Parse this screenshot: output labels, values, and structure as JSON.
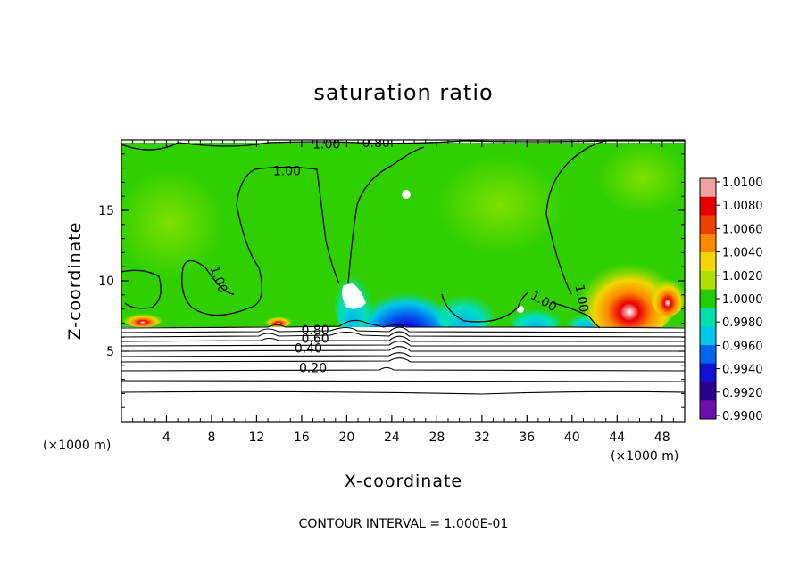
{
  "chart_data": {
    "type": "heatmap",
    "title": "saturation ratio",
    "xlabel": "X-coordinate",
    "ylabel": "Z-coordinate",
    "x_unit": "(×1000 m)",
    "y_unit": "(×1000 m)",
    "xlim": [
      0,
      50
    ],
    "ylim": [
      0,
      20
    ],
    "x_ticks": [
      4,
      8,
      12,
      16,
      20,
      24,
      28,
      32,
      36,
      40,
      44,
      48
    ],
    "y_ticks": [
      5,
      10,
      15
    ],
    "note": "CONTOUR INTERVAL = 1.000E-01",
    "colorbar": {
      "min": 0.99,
      "max": 1.01,
      "labels": [
        "1.0100",
        "1.0080",
        "1.0060",
        "1.0040",
        "1.0020",
        "1.0000",
        "0.9980",
        "0.9960",
        "0.9940",
        "0.9920",
        "0.9900"
      ],
      "colors": [
        "#f2a0a0",
        "#e80000",
        "#f04000",
        "#ff8800",
        "#f0d800",
        "#b0e000",
        "#22cc00",
        "#00e0a8",
        "#00c8e8",
        "#0066f0",
        "#1010d8",
        "#2a0090",
        "#6a10b0"
      ]
    },
    "contour_labels": [
      {
        "text": "1.00",
        "x": 14.7,
        "z": 17.5
      },
      {
        "text": "1.00",
        "x": 8.3,
        "z": 10.0,
        "rotate": 70
      },
      {
        "text": "1.00",
        "x": 37.3,
        "z": 8.3,
        "rotate": 30
      },
      {
        "text": "1.00",
        "x": 40.5,
        "z": 8.7,
        "rotate": 80
      },
      {
        "text": "1.00",
        "x": 18.2,
        "z": 19.4
      },
      {
        "text": "0.80",
        "x": 22.6,
        "z": 19.5
      },
      {
        "text": "0.80",
        "x": 17.2,
        "z": 6.2
      },
      {
        "text": "0.60",
        "x": 17.2,
        "z": 5.6
      },
      {
        "text": "0.40",
        "x": 16.6,
        "z": 4.9
      },
      {
        "text": "0.20",
        "x": 17.0,
        "z": 3.5
      }
    ],
    "terrain_top_z": 6.6,
    "isolines_below": [
      6.3,
      6.0,
      5.7,
      5.4,
      5.1,
      4.8,
      4.4,
      4.0,
      3.5,
      2.8,
      2.1
    ]
  }
}
